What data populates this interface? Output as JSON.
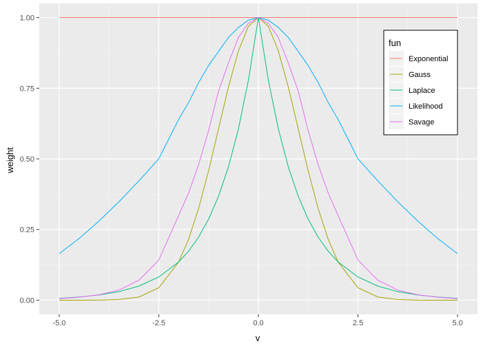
{
  "chart_data": {
    "type": "line",
    "xlabel": "v",
    "ylabel": "weight",
    "xlim": [
      -5,
      5
    ],
    "ylim": [
      0,
      1
    ],
    "x_ticks": [
      -5.0,
      -2.5,
      0.0,
      2.5,
      5.0
    ],
    "x_tick_labels": [
      "-5.0",
      "-2.5",
      "0.0",
      "2.5",
      "5.0"
    ],
    "y_ticks": [
      0.0,
      0.25,
      0.5,
      0.75,
      1.0
    ],
    "y_tick_labels": [
      "0.00",
      "0.25",
      "0.50",
      "0.75",
      "1.00"
    ],
    "grid": true,
    "legend": {
      "title": "fun",
      "position": "top-right"
    },
    "x": [
      -5,
      -4.5,
      -4,
      -3.5,
      -3,
      -2.5,
      -2,
      -1.75,
      -1.5,
      -1.25,
      -1,
      -0.75,
      -0.5,
      -0.25,
      0,
      0.25,
      0.5,
      0.75,
      1,
      1.25,
      1.5,
      1.75,
      2,
      2.5,
      3,
      3.5,
      4,
      4.5,
      5
    ],
    "series": [
      {
        "name": "Exponential",
        "color": "#F8766D",
        "values": [
          1,
          1,
          1,
          1,
          1,
          1,
          1,
          1,
          1,
          1,
          1,
          1,
          1,
          1,
          1,
          1,
          1,
          1,
          1,
          1,
          1,
          1,
          1,
          1,
          1,
          1,
          1,
          1,
          1
        ]
      },
      {
        "name": "Gauss",
        "color": "#A3A500",
        "values": [
          0.0,
          0.0,
          0.0003,
          0.0022,
          0.0111,
          0.0439,
          0.1353,
          0.2163,
          0.3247,
          0.4578,
          0.6065,
          0.7548,
          0.8825,
          0.9692,
          1.0,
          0.9692,
          0.8825,
          0.7548,
          0.6065,
          0.4578,
          0.3247,
          0.2163,
          0.1353,
          0.0439,
          0.0111,
          0.0022,
          0.0003,
          0.0,
          0.0
        ]
      },
      {
        "name": "Laplace",
        "color": "#00BF7D",
        "values": [
          0.0067,
          0.0111,
          0.0183,
          0.0302,
          0.0498,
          0.0821,
          0.1353,
          0.1738,
          0.2231,
          0.2865,
          0.3679,
          0.4724,
          0.6065,
          0.7788,
          1.0,
          0.7788,
          0.6065,
          0.4724,
          0.3679,
          0.2865,
          0.2231,
          0.1738,
          0.1353,
          0.0821,
          0.0498,
          0.0302,
          0.0183,
          0.0111,
          0.0067
        ]
      },
      {
        "name": "Likelihood",
        "color": "#00B0F6",
        "values": [
          0.1644,
          0.2183,
          0.28,
          0.3482,
          0.4219,
          0.5,
          0.64,
          0.7,
          0.77,
          0.83,
          0.88,
          0.93,
          0.965,
          0.991,
          1.0,
          0.991,
          0.965,
          0.93,
          0.88,
          0.83,
          0.77,
          0.7,
          0.64,
          0.5,
          0.4219,
          0.3482,
          0.28,
          0.2183,
          0.1644
        ]
      },
      {
        "name": "Savage",
        "color": "#E76BF3",
        "values": [
          0.0054,
          0.0105,
          0.0191,
          0.0356,
          0.0705,
          0.1419,
          0.3,
          0.38,
          0.48,
          0.6,
          0.74,
          0.84,
          0.93,
          0.98,
          1.0,
          0.98,
          0.93,
          0.84,
          0.74,
          0.6,
          0.48,
          0.38,
          0.3,
          0.1419,
          0.0705,
          0.0356,
          0.0191,
          0.0105,
          0.0054
        ]
      }
    ]
  }
}
